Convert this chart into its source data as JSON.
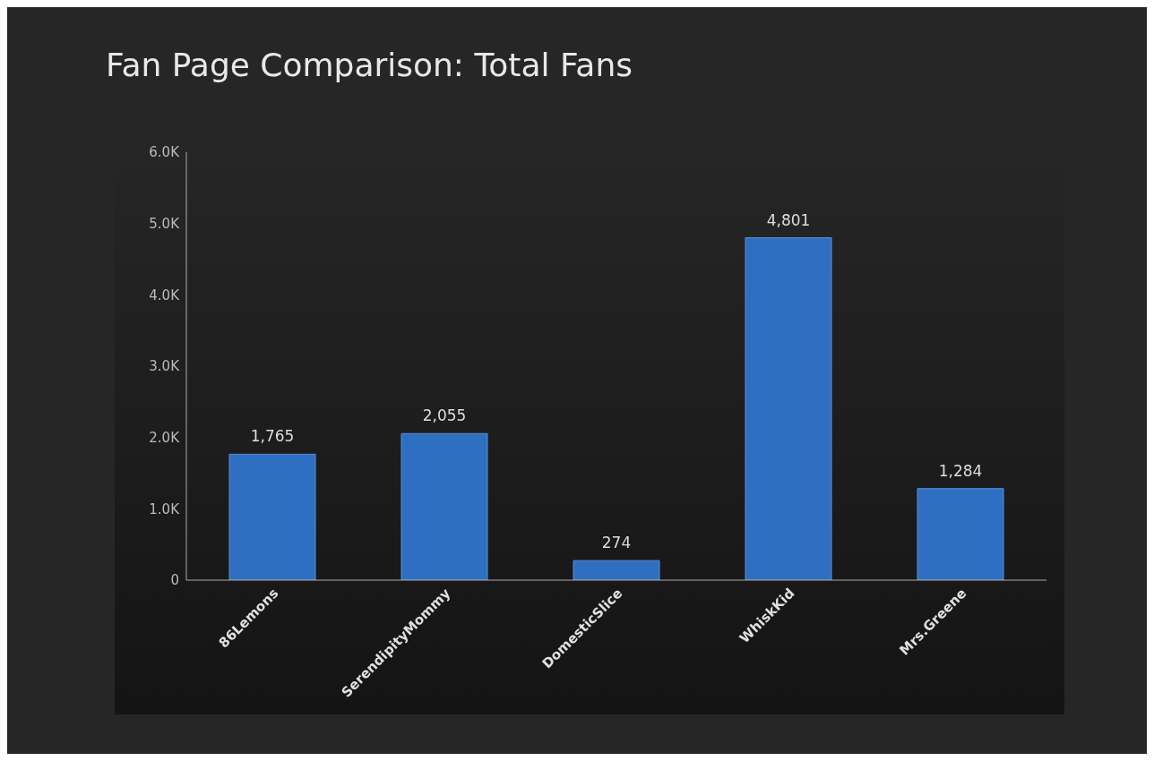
{
  "chart_data": {
    "type": "bar",
    "title": "Fan Page Comparison: Total Fans",
    "categories": [
      "86Lemons",
      "SerendipityMommy",
      "DomesticSlice",
      "WhiskKid",
      "Mrs.Greene"
    ],
    "values": [
      1765,
      2055,
      274,
      4801,
      1284
    ],
    "color": "#2f6fc2",
    "ylim": [
      0,
      6000
    ],
    "yticks": [
      {
        "value": 0,
        "label": "0"
      },
      {
        "value": 1000,
        "label": "1.0K"
      },
      {
        "value": 2000,
        "label": "2.0K"
      },
      {
        "value": 3000,
        "label": "3.0K"
      },
      {
        "value": 4000,
        "label": "4.0K"
      },
      {
        "value": 5000,
        "label": "5.0K"
      },
      {
        "value": 6000,
        "label": "6.0K"
      }
    ],
    "value_labels": [
      "1,765",
      "2,055",
      "274",
      "4,801",
      "1,284"
    ],
    "grid": false,
    "legend": false
  }
}
